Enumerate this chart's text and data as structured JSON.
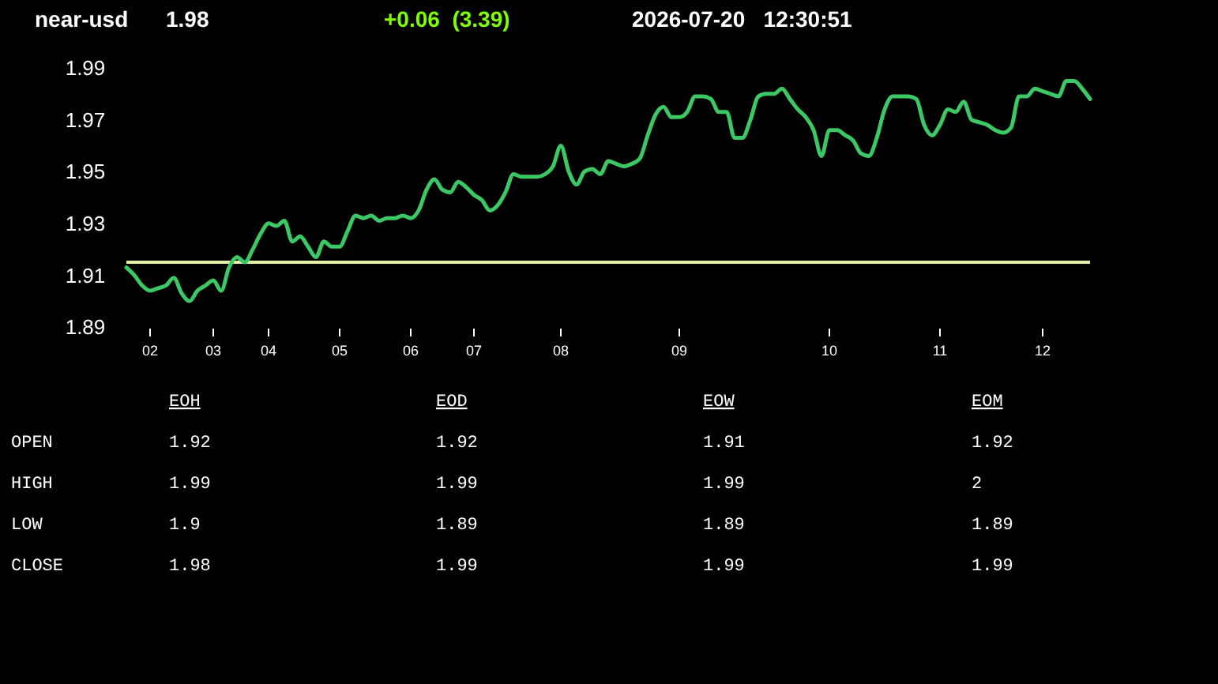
{
  "chart_data": {
    "type": "line",
    "title": "near-usd",
    "subtitle": "1.98",
    "annotations": [
      "+0.06  (3.39)",
      "2026-07-20   12:30:51",
      "EOH",
      "EOD",
      "EOW",
      "EOM",
      "OPEN",
      "1.92",
      "1.92",
      "1.91",
      "1.92",
      "HIGH",
      "1.99",
      "1.99",
      "1.99",
      "2",
      "LOW",
      "1.9",
      "1.89",
      "1.89",
      "1.89",
      "CLOSE",
      "1.98",
      "1.99",
      "1.99",
      "1.99"
    ],
    "categories": [
      null,
      null,
      null,
      "02",
      null,
      null,
      null,
      null,
      null,
      null,
      null,
      "03",
      null,
      null,
      null,
      null,
      null,
      null,
      "04",
      null,
      null,
      null,
      null,
      null,
      null,
      null,
      null,
      "05",
      null,
      null,
      null,
      null,
      null,
      null,
      null,
      null,
      "06",
      null,
      null,
      null,
      null,
      null,
      null,
      null,
      "07",
      null,
      null,
      null,
      null,
      null,
      null,
      null,
      null,
      null,
      null,
      "08",
      null,
      null,
      null,
      null,
      null,
      null,
      null,
      null,
      null,
      null,
      null,
      null,
      null,
      null,
      "09",
      null,
      null,
      null,
      null,
      null,
      null,
      null,
      null,
      null,
      null,
      null,
      null,
      null,
      null,
      null,
      null,
      null,
      null,
      "10",
      null,
      null,
      null,
      null,
      null,
      null,
      null,
      null,
      null,
      null,
      null,
      null,
      null,
      "11",
      null,
      null,
      null,
      null,
      null,
      null,
      null,
      null,
      null,
      null,
      null,
      null,
      "12",
      null,
      null,
      null,
      null,
      null,
      null
    ],
    "ylim": [
      1.89,
      1.99
    ],
    "yticks": [
      1.89,
      1.91,
      1.93,
      1.95,
      1.97,
      1.99
    ],
    "grid": false,
    "marker": "none",
    "line_style": "solid",
    "ref_lines": [
      {
        "axis": "y",
        "value": 1.915,
        "color": "#e6f0a8"
      }
    ],
    "series": [
      {
        "color": "#3cc864",
        "values": [
          1.913,
          1.91,
          1.906,
          1.904,
          1.905,
          1.906,
          1.909,
          1.903,
          1.9,
          1.904,
          1.906,
          1.908,
          1.904,
          1.913,
          1.917,
          1.915,
          1.92,
          1.926,
          1.93,
          1.929,
          1.931,
          1.923,
          1.925,
          1.921,
          1.917,
          1.923,
          1.921,
          1.921,
          1.927,
          1.933,
          1.932,
          1.933,
          1.931,
          1.932,
          1.932,
          1.933,
          1.932,
          1.935,
          1.943,
          1.947,
          1.943,
          1.942,
          1.946,
          1.944,
          1.941,
          1.939,
          1.935,
          1.937,
          1.942,
          1.949,
          1.948,
          1.948,
          1.948,
          1.949,
          1.952,
          1.96,
          1.95,
          1.945,
          1.95,
          1.951,
          1.949,
          1.954,
          1.953,
          1.952,
          1.953,
          1.955,
          1.964,
          1.972,
          1.975,
          1.971,
          1.971,
          1.973,
          1.979,
          1.979,
          1.978,
          1.973,
          1.973,
          1.963,
          1.963,
          1.97,
          1.979,
          1.98,
          1.98,
          1.982,
          1.978,
          1.974,
          1.971,
          1.966,
          1.956,
          1.966,
          1.966,
          1.964,
          1.962,
          1.957,
          1.956,
          1.963,
          1.974,
          1.979,
          1.979,
          1.979,
          1.978,
          1.968,
          1.964,
          1.968,
          1.974,
          1.973,
          1.977,
          1.97,
          1.969,
          1.968,
          1.966,
          1.965,
          1.967,
          1.979,
          1.979,
          1.982,
          1.981,
          1.98,
          1.979,
          1.985,
          1.985,
          1.982,
          1.978
        ]
      }
    ]
  }
}
